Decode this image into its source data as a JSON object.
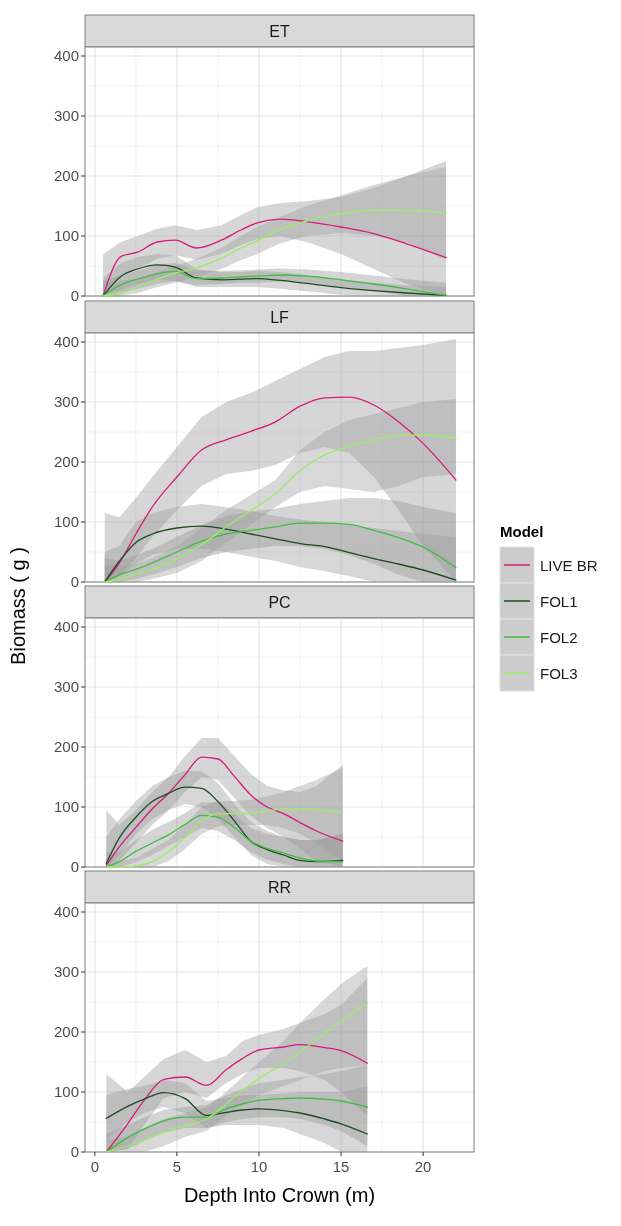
{
  "chart_data": [
    {
      "type": "line",
      "title": "ET",
      "xlim": [
        -0.6,
        23.1
      ],
      "ylim": [
        0,
        415
      ],
      "xticks": [
        0,
        5,
        10,
        15,
        20
      ],
      "yticks": [
        0,
        100,
        200,
        300,
        400
      ],
      "grid": true,
      "tick_labels": "y",
      "x": [
        0.5,
        1.6,
        2.6,
        3.8,
        4.9,
        6.2,
        7.7,
        8.9,
        9.9,
        11.3,
        12.9,
        15,
        17,
        19,
        21.4
      ],
      "series": [
        {
          "color": "#d81b78",
          "values": [
            0,
            66,
            73,
            90,
            93,
            80,
            93,
            110,
            122,
            128,
            124,
            115,
            104,
            87,
            64
          ],
          "lower": [
            0,
            35,
            45,
            62,
            68,
            60,
            70,
            85,
            95,
            100,
            90,
            70,
            45,
            20,
            0
          ],
          "upper": [
            70,
            90,
            100,
            112,
            118,
            110,
            118,
            135,
            148,
            155,
            158,
            165,
            180,
            200,
            225
          ]
        },
        {
          "color": "#1e4d22",
          "values": [
            0,
            33,
            45,
            52,
            48,
            30,
            27,
            28,
            29,
            26,
            21,
            14,
            9,
            5,
            1
          ],
          "lower": [
            0,
            10,
            20,
            28,
            25,
            15,
            15,
            15,
            15,
            12,
            8,
            2,
            0,
            0,
            0
          ],
          "upper": [
            30,
            55,
            65,
            70,
            68,
            45,
            40,
            40,
            42,
            40,
            35,
            28,
            22,
            18,
            15
          ]
        },
        {
          "color": "#3fbf3f",
          "values": [
            0,
            19,
            28,
            37,
            41,
            29,
            30,
            32,
            33,
            35,
            33,
            27,
            20,
            12,
            1
          ],
          "lower": [
            0,
            5,
            12,
            20,
            25,
            18,
            20,
            22,
            22,
            24,
            22,
            15,
            8,
            0,
            0
          ],
          "upper": [
            25,
            35,
            42,
            52,
            55,
            42,
            42,
            43,
            44,
            46,
            44,
            40,
            34,
            28,
            22
          ]
        },
        {
          "color": "#99ee66",
          "values": [
            0,
            5,
            15,
            28,
            38,
            47,
            63,
            80,
            92,
            111,
            125,
            137,
            143,
            143,
            138
          ],
          "lower": [
            0,
            0,
            5,
            15,
            22,
            32,
            45,
            60,
            70,
            88,
            100,
            105,
            100,
            90,
            60
          ],
          "upper": [
            20,
            25,
            30,
            40,
            50,
            62,
            80,
            100,
            115,
            132,
            150,
            168,
            185,
            200,
            215
          ]
        }
      ]
    },
    {
      "type": "line",
      "title": "LF",
      "ylabel": "Biomass ( g )",
      "legend": "right",
      "legend_title": "Model",
      "xlim": [
        -0.6,
        23.1
      ],
      "ylim": [
        0,
        415
      ],
      "xticks": [
        0,
        5,
        10,
        15,
        20
      ],
      "yticks": [
        0,
        100,
        200,
        300,
        400
      ],
      "grid": true,
      "tick_labels": "y",
      "x": [
        0.6,
        1.5,
        2.5,
        3.5,
        5,
        6.5,
        8,
        9.5,
        11,
        12.5,
        14,
        15.5,
        17,
        18.5,
        20,
        22
      ],
      "series": [
        {
          "name": "LIVE BR",
          "color": "#d81b78",
          "values": [
            0,
            32,
            80,
            125,
            175,
            220,
            237,
            251,
            267,
            293,
            307,
            308,
            295,
            267,
            231,
            170
          ],
          "lower": [
            0,
            10,
            40,
            75,
            120,
            160,
            180,
            185,
            195,
            215,
            225,
            215,
            175,
            120,
            60,
            0
          ],
          "upper": [
            115,
            108,
            140,
            175,
            225,
            275,
            300,
            315,
            335,
            355,
            375,
            385,
            385,
            390,
            395,
            405
          ]
        },
        {
          "name": "FOL1",
          "color": "#1e4d22",
          "values": [
            0,
            35,
            66,
            80,
            90,
            93,
            88,
            80,
            72,
            64,
            59,
            49,
            39,
            30,
            20,
            3
          ],
          "lower": [
            0,
            10,
            30,
            45,
            55,
            55,
            50,
            42,
            35,
            25,
            18,
            10,
            0,
            0,
            0,
            0
          ],
          "upper": [
            50,
            60,
            100,
            115,
            125,
            130,
            125,
            118,
            110,
            104,
            100,
            95,
            90,
            85,
            80,
            75
          ]
        },
        {
          "name": "FOL2",
          "color": "#3fbf3f",
          "values": [
            0,
            12,
            21,
            32,
            50,
            68,
            80,
            86,
            92,
            98,
            98,
            96,
            86,
            74,
            58,
            24
          ],
          "lower": [
            0,
            0,
            5,
            12,
            25,
            40,
            50,
            55,
            60,
            60,
            55,
            45,
            30,
            12,
            0,
            0
          ],
          "upper": [
            40,
            35,
            45,
            55,
            75,
            95,
            110,
            118,
            122,
            130,
            135,
            140,
            140,
            135,
            125,
            115
          ]
        },
        {
          "name": "FOL3",
          "color": "#99ee66",
          "values": [
            0,
            4,
            13,
            21,
            38,
            62,
            92,
            119,
            147,
            186,
            212,
            226,
            237,
            244,
            245,
            240
          ],
          "lower": [
            0,
            0,
            0,
            5,
            15,
            35,
            65,
            95,
            125,
            150,
            160,
            155,
            150,
            160,
            175,
            180
          ],
          "upper": [
            30,
            25,
            30,
            40,
            60,
            90,
            120,
            145,
            170,
            220,
            250,
            270,
            280,
            290,
            300,
            305
          ]
        }
      ]
    },
    {
      "type": "line",
      "title": "PC",
      "xlim": [
        -0.6,
        23.1
      ],
      "ylim": [
        0,
        415
      ],
      "xticks": [
        0,
        5,
        10,
        15,
        20
      ],
      "yticks": [
        0,
        100,
        200,
        300,
        400
      ],
      "grid": true,
      "tick_labels": "y",
      "x": [
        0.7,
        1.5,
        2.5,
        3.5,
        4.5,
        5.5,
        6.5,
        7.5,
        8.5,
        9.5,
        10.5,
        11.5,
        12.5,
        13.5,
        15.1
      ],
      "series": [
        {
          "color": "#d81b78",
          "values": [
            3,
            34,
            66,
            97,
            123,
            154,
            183,
            180,
            151,
            120,
            100,
            89,
            74,
            60,
            43
          ],
          "lower": [
            0,
            10,
            40,
            70,
            95,
            125,
            150,
            145,
            115,
            85,
            65,
            50,
            30,
            10,
            0
          ],
          "upper": [
            95,
            70,
            95,
            125,
            150,
            185,
            215,
            215,
            185,
            155,
            135,
            128,
            125,
            135,
            170
          ]
        },
        {
          "color": "#1e4d22",
          "values": [
            6,
            49,
            83,
            109,
            123,
            133,
            131,
            109,
            77,
            43,
            29,
            20,
            11,
            9,
            11
          ],
          "lower": [
            0,
            20,
            55,
            80,
            95,
            105,
            100,
            80,
            50,
            20,
            5,
            0,
            0,
            0,
            0
          ],
          "upper": [
            50,
            80,
            110,
            135,
            150,
            160,
            160,
            140,
            105,
            75,
            60,
            50,
            45,
            45,
            55
          ]
        },
        {
          "color": "#3fbf3f",
          "values": [
            0,
            9,
            26,
            40,
            54,
            71,
            86,
            83,
            66,
            43,
            31,
            23,
            15,
            10,
            9
          ],
          "lower": [
            0,
            0,
            8,
            20,
            35,
            50,
            65,
            60,
            45,
            25,
            12,
            5,
            0,
            0,
            0
          ],
          "upper": [
            25,
            25,
            45,
            62,
            75,
            90,
            108,
            108,
            90,
            65,
            55,
            50,
            45,
            45,
            55
          ]
        },
        {
          "color": "#99ee66",
          "values": [
            0,
            0,
            2,
            9,
            26,
            49,
            77,
            89,
            89,
            90,
            93,
            97,
            97,
            96,
            90
          ],
          "lower": [
            0,
            0,
            0,
            0,
            10,
            30,
            55,
            68,
            70,
            70,
            70,
            65,
            55,
            40,
            10
          ],
          "upper": [
            15,
            10,
            15,
            30,
            45,
            70,
            100,
            110,
            110,
            112,
            118,
            125,
            135,
            145,
            165
          ]
        }
      ]
    },
    {
      "type": "line",
      "title": "RR",
      "xlabel": "Depth Into Crown (m)",
      "xlim": [
        -0.6,
        23.1
      ],
      "ylim": [
        0,
        415
      ],
      "xticks": [
        0,
        5,
        10,
        15,
        20
      ],
      "yticks": [
        0,
        100,
        200,
        300,
        400
      ],
      "grid": true,
      "x": [
        0.7,
        2,
        3,
        4.2,
        5.5,
        6.8,
        8,
        9,
        10,
        11.5,
        12.5,
        14,
        15,
        16.6
      ],
      "series": [
        {
          "color": "#d81b78",
          "values": [
            0,
            47,
            86,
            121,
            125,
            111,
            137,
            156,
            170,
            175,
            179,
            174,
            169,
            148
          ],
          "lower": [
            0,
            5,
            45,
            90,
            100,
            90,
            115,
            130,
            140,
            140,
            135,
            120,
            100,
            60
          ],
          "upper": [
            130,
            100,
            125,
            155,
            170,
            150,
            160,
            185,
            195,
            205,
            215,
            230,
            245,
            290
          ]
        },
        {
          "color": "#1e4d22",
          "values": [
            56,
            76,
            88,
            99,
            89,
            61,
            66,
            70,
            72,
            69,
            65,
            55,
            47,
            30
          ],
          "lower": [
            20,
            50,
            65,
            75,
            65,
            40,
            45,
            45,
            45,
            40,
            30,
            15,
            0,
            0
          ],
          "upper": [
            95,
            105,
            110,
            120,
            115,
            85,
            90,
            95,
            95,
            98,
            100,
            100,
            100,
            110
          ]
        },
        {
          "color": "#3fbf3f",
          "values": [
            0,
            24,
            38,
            52,
            58,
            58,
            72,
            80,
            86,
            89,
            90,
            88,
            85,
            75
          ],
          "lower": [
            0,
            5,
            18,
            32,
            40,
            40,
            50,
            55,
            58,
            58,
            55,
            45,
            35,
            10
          ],
          "upper": [
            30,
            45,
            58,
            70,
            75,
            78,
            95,
            105,
            115,
            120,
            125,
            130,
            135,
            145
          ]
        },
        {
          "color": "#99ee66",
          "values": [
            0,
            10,
            20,
            33,
            44,
            55,
            80,
            103,
            122,
            148,
            167,
            198,
            218,
            249
          ],
          "lower": [
            0,
            0,
            0,
            10,
            25,
            35,
            60,
            80,
            95,
            110,
            120,
            135,
            140,
            145
          ],
          "upper": [
            20,
            25,
            40,
            55,
            65,
            75,
            100,
            125,
            150,
            185,
            215,
            255,
            280,
            310
          ]
        }
      ]
    }
  ]
}
